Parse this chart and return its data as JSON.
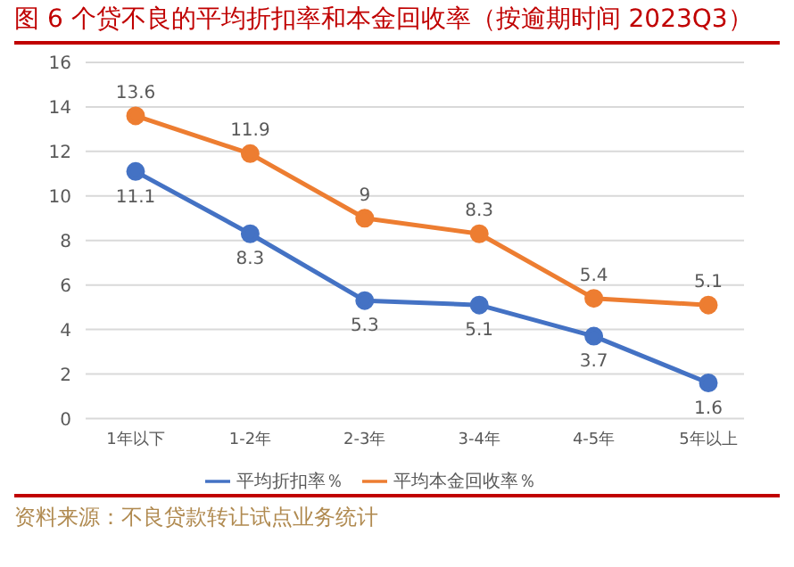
{
  "chart_data": {
    "type": "line",
    "title": "图 6  个贷不良的平均折扣率和本金回收率（按逾期时间 2023Q3）",
    "categories": [
      "1年以下",
      "1-2年",
      "2-3年",
      "3-4年",
      "4-5年",
      "5年以上"
    ],
    "series": [
      {
        "name": "平均折扣率％",
        "color": "#4472c4",
        "values": [
          11.1,
          8.3,
          5.3,
          5.1,
          3.7,
          1.6
        ]
      },
      {
        "name": "平均本金回收率％",
        "color": "#ed7d31",
        "values": [
          13.6,
          11.9,
          9,
          8.3,
          5.4,
          5.1
        ]
      }
    ],
    "ylim": [
      0,
      16
    ],
    "yticks": [
      0,
      2,
      4,
      6,
      8,
      10,
      12,
      14,
      16
    ],
    "grid": "y",
    "legend": "bottom",
    "marker": "circle",
    "line_style": "solid",
    "data_labels": true,
    "annotations": [
      "资料来源：不良贷款转让试点业务统计"
    ]
  }
}
